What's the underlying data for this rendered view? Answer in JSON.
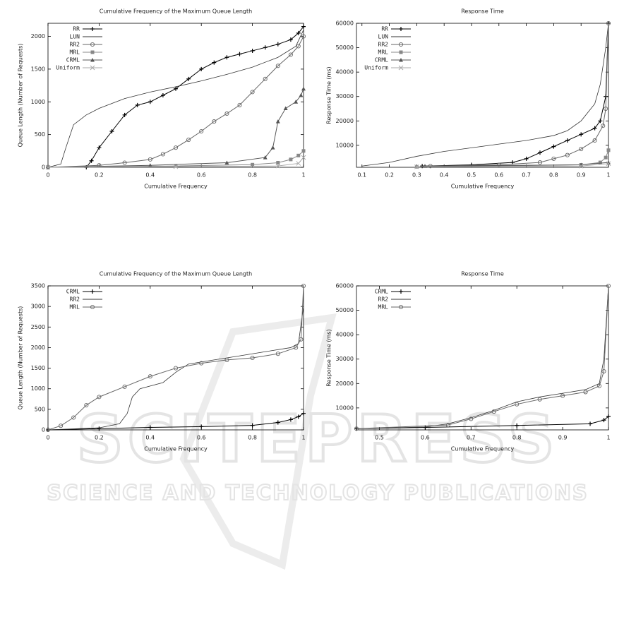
{
  "chart_data": [
    {
      "type": "line",
      "title": "Cumulative Frequency of the Maximum Queue Length",
      "x_label": "Cumulative Frequency",
      "y_label": "Queue Length (Number of Requests)",
      "xlim": [
        0,
        1
      ],
      "xticks": [
        0,
        0.2,
        0.4,
        0.6,
        0.8,
        1
      ],
      "ylim": [
        0,
        2200
      ],
      "yticks": [
        0,
        500,
        1000,
        1500,
        2000
      ],
      "legend": "top-left",
      "series": [
        {
          "name": "RR",
          "color": "#000000",
          "marker": "plus",
          "x": [
            0.15,
            0.17,
            0.2,
            0.25,
            0.3,
            0.35,
            0.4,
            0.45,
            0.5,
            0.55,
            0.6,
            0.65,
            0.7,
            0.75,
            0.8,
            0.85,
            0.9,
            0.95,
            0.98,
            1
          ],
          "values": [
            0,
            100,
            300,
            550,
            800,
            950,
            1000,
            1100,
            1200,
            1350,
            1500,
            1600,
            1680,
            1730,
            1780,
            1830,
            1880,
            1950,
            2050,
            2150
          ]
        },
        {
          "name": "LUN",
          "color": "#333333",
          "marker": "none",
          "x": [
            0,
            0.05,
            0.07,
            0.1,
            0.15,
            0.2,
            0.3,
            0.4,
            0.5,
            0.6,
            0.7,
            0.8,
            0.9,
            0.97,
            1
          ],
          "values": [
            0,
            50,
            300,
            650,
            800,
            900,
            1050,
            1150,
            1230,
            1320,
            1420,
            1530,
            1680,
            1850,
            2100
          ]
        },
        {
          "name": "RR2",
          "color": "#666666",
          "marker": "circle",
          "x": [
            0,
            0.2,
            0.3,
            0.4,
            0.45,
            0.5,
            0.55,
            0.6,
            0.65,
            0.7,
            0.75,
            0.8,
            0.85,
            0.9,
            0.95,
            0.98,
            1
          ],
          "values": [
            0,
            30,
            70,
            120,
            200,
            300,
            420,
            550,
            700,
            820,
            950,
            1150,
            1350,
            1550,
            1720,
            1850,
            2000
          ]
        },
        {
          "name": "MRL",
          "color": "#888888",
          "marker": "square",
          "x": [
            0,
            0.5,
            0.8,
            0.9,
            0.95,
            0.98,
            1
          ],
          "values": [
            0,
            20,
            40,
            70,
            120,
            180,
            250
          ]
        },
        {
          "name": "CRML",
          "color": "#555555",
          "marker": "triangle",
          "x": [
            0,
            0.4,
            0.7,
            0.85,
            0.88,
            0.9,
            0.93,
            0.97,
            0.99,
            1
          ],
          "values": [
            0,
            30,
            70,
            150,
            300,
            700,
            900,
            1000,
            1100,
            1200
          ]
        },
        {
          "name": "Uniform",
          "color": "#aaaaaa",
          "marker": "cross",
          "x": [
            0,
            0.5,
            0.9,
            0.98,
            1
          ],
          "values": [
            0,
            10,
            20,
            60,
            150
          ]
        }
      ]
    },
    {
      "type": "line",
      "title": "Response Time",
      "x_label": "Cumulative Frequency",
      "y_label": "Response Time (ms)",
      "xlim": [
        0.08,
        1
      ],
      "xticks": [
        0.1,
        0.2,
        0.3,
        0.4,
        0.5,
        0.6,
        0.7,
        0.8,
        0.9,
        1
      ],
      "ylim": [
        1000,
        60000
      ],
      "yticks": [
        10000,
        20000,
        30000,
        40000,
        50000,
        60000
      ],
      "legend": "top-left",
      "series": [
        {
          "name": "RR",
          "color": "#000000",
          "marker": "plus",
          "x": [
            0.32,
            0.5,
            0.65,
            0.7,
            0.75,
            0.8,
            0.85,
            0.9,
            0.95,
            0.97,
            0.99,
            1
          ],
          "values": [
            1500,
            2000,
            3000,
            4500,
            7000,
            9500,
            12000,
            14500,
            17000,
            20000,
            30000,
            60000
          ]
        },
        {
          "name": "LUN",
          "color": "#333333",
          "marker": "none",
          "x": [
            0.1,
            0.2,
            0.3,
            0.4,
            0.5,
            0.6,
            0.7,
            0.8,
            0.85,
            0.9,
            0.95,
            0.97,
            0.99,
            1
          ],
          "values": [
            1500,
            3000,
            5500,
            7500,
            9000,
            10500,
            12000,
            14000,
            16000,
            20000,
            27000,
            35000,
            50000,
            60000
          ]
        },
        {
          "name": "RR2",
          "color": "#666666",
          "marker": "circle",
          "x": [
            0.35,
            0.6,
            0.75,
            0.8,
            0.85,
            0.9,
            0.95,
            0.98,
            0.99,
            1
          ],
          "values": [
            1500,
            2000,
            3000,
            4500,
            6000,
            8500,
            12000,
            18000,
            25000,
            60000
          ]
        },
        {
          "name": "MRL",
          "color": "#888888",
          "marker": "square",
          "x": [
            0.3,
            0.9,
            0.97,
            0.99,
            1
          ],
          "values": [
            1200,
            2000,
            3000,
            5000,
            8000
          ]
        },
        {
          "name": "CRML",
          "color": "#555555",
          "marker": "triangle",
          "x": [
            0.33,
            0.9,
            1
          ],
          "values": [
            1500,
            2000,
            3000
          ]
        },
        {
          "name": "Uniform",
          "color": "#aaaaaa",
          "marker": "cross",
          "x": [
            0.3,
            0.9,
            1
          ],
          "values": [
            1200,
            1500,
            2500
          ]
        }
      ]
    },
    {
      "type": "line",
      "title": "Cumulative Frequency of the Maximum Queue Length",
      "x_label": "Cumulative Frequency",
      "y_label": "Queue Length (Number of Requests)",
      "xlim": [
        0,
        1
      ],
      "xticks": [
        0,
        0.2,
        0.4,
        0.6,
        0.8,
        1
      ],
      "ylim": [
        0,
        3500
      ],
      "yticks": [
        0,
        500,
        1000,
        1500,
        2000,
        2500,
        3000,
        3500
      ],
      "legend": "top-left",
      "series": [
        {
          "name": "CRML",
          "color": "#000000",
          "marker": "plus",
          "x": [
            0,
            0.2,
            0.4,
            0.6,
            0.8,
            0.9,
            0.95,
            0.98,
            1
          ],
          "values": [
            0,
            30,
            60,
            80,
            110,
            180,
            250,
            320,
            400
          ]
        },
        {
          "name": "RR2",
          "color": "#333333",
          "marker": "none",
          "x": [
            0,
            0.2,
            0.28,
            0.31,
            0.33,
            0.36,
            0.45,
            0.5,
            0.55,
            0.65,
            0.75,
            0.85,
            0.95,
            0.98,
            1
          ],
          "values": [
            0,
            50,
            150,
            400,
            800,
            1000,
            1150,
            1400,
            1600,
            1700,
            1800,
            1900,
            2000,
            2100,
            3000
          ]
        },
        {
          "name": "MRL",
          "color": "#666666",
          "marker": "circle",
          "x": [
            0,
            0.05,
            0.1,
            0.15,
            0.2,
            0.3,
            0.4,
            0.5,
            0.6,
            0.7,
            0.8,
            0.9,
            0.97,
            0.99,
            1
          ],
          "values": [
            0,
            100,
            300,
            600,
            800,
            1050,
            1300,
            1500,
            1620,
            1700,
            1750,
            1850,
            2000,
            2200,
            3500
          ]
        }
      ]
    },
    {
      "type": "line",
      "title": "Response Time",
      "x_label": "Cumulative Frequency",
      "y_label": "Response Time (ms)",
      "xlim": [
        0.45,
        1
      ],
      "xticks": [
        0.5,
        0.6,
        0.7,
        0.8,
        0.9,
        1
      ],
      "ylim": [
        1000,
        60000
      ],
      "yticks": [
        10000,
        20000,
        30000,
        40000,
        50000,
        60000
      ],
      "legend": "top-left",
      "series": [
        {
          "name": "CRML",
          "color": "#000000",
          "marker": "plus",
          "x": [
            0.45,
            0.6,
            0.8,
            0.96,
            0.99,
            1
          ],
          "values": [
            1500,
            2000,
            2800,
            3500,
            5000,
            6500
          ]
        },
        {
          "name": "RR2",
          "color": "#333333",
          "marker": "none",
          "x": [
            0.45,
            0.6,
            0.65,
            0.7,
            0.75,
            0.8,
            0.85,
            0.9,
            0.95,
            0.98,
            0.99,
            1
          ],
          "values": [
            1500,
            2200,
            3500,
            6000,
            9000,
            12500,
            14500,
            16000,
            17500,
            20000,
            30000,
            60000
          ]
        },
        {
          "name": "MRL",
          "color": "#666666",
          "marker": "circle",
          "x": [
            0.45,
            0.65,
            0.7,
            0.75,
            0.8,
            0.85,
            0.9,
            0.95,
            0.98,
            0.99,
            1
          ],
          "values": [
            1500,
            3000,
            5500,
            8500,
            11500,
            13500,
            15000,
            16500,
            19000,
            25000,
            60000
          ]
        }
      ]
    }
  ],
  "watermark": {
    "title": "SCITEPRESS",
    "subtitle": "SCIENCE AND TECHNOLOGY PUBLICATIONS"
  }
}
